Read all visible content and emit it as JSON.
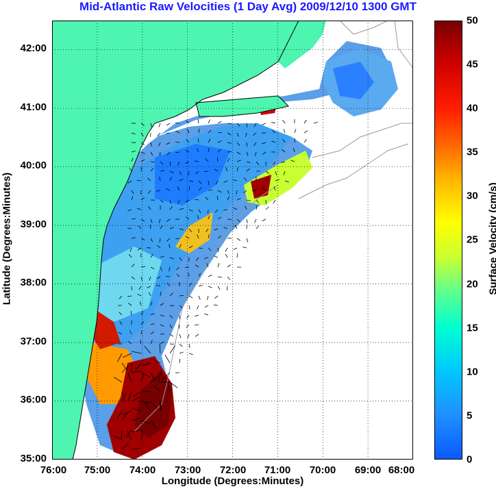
{
  "title": "Mid-Atlantic Raw Velocities (1 Day Avg) 2009/12/10 1300 GMT",
  "map": {
    "xlabel": "Longitude (Degrees:Minutes)",
    "ylabel": "Latitude (Degrees:Minutes)",
    "lat_ticks": [
      "42:00",
      "41:00",
      "40:00",
      "39:00",
      "38:00",
      "37:00",
      "36:00",
      "35:00"
    ],
    "lon_ticks": [
      "76:00",
      "75:00",
      "74:00",
      "73:00",
      "72:00",
      "71:00",
      "70:00",
      "69:00",
      "68:00"
    ],
    "lat_range": [
      35,
      42.5
    ],
    "lon_range": [
      -76,
      -68
    ],
    "grid": "dotted",
    "land_color": "#4df5b0",
    "field": "surface current speed"
  },
  "colorbar": {
    "label": "Surface Velocity (cm/s)",
    "ticks": [
      "0",
      "5",
      "10",
      "15",
      "20",
      "25",
      "30",
      "35",
      "40",
      "45",
      "50"
    ],
    "range": [
      0,
      50
    ],
    "colormap": "jet"
  }
}
